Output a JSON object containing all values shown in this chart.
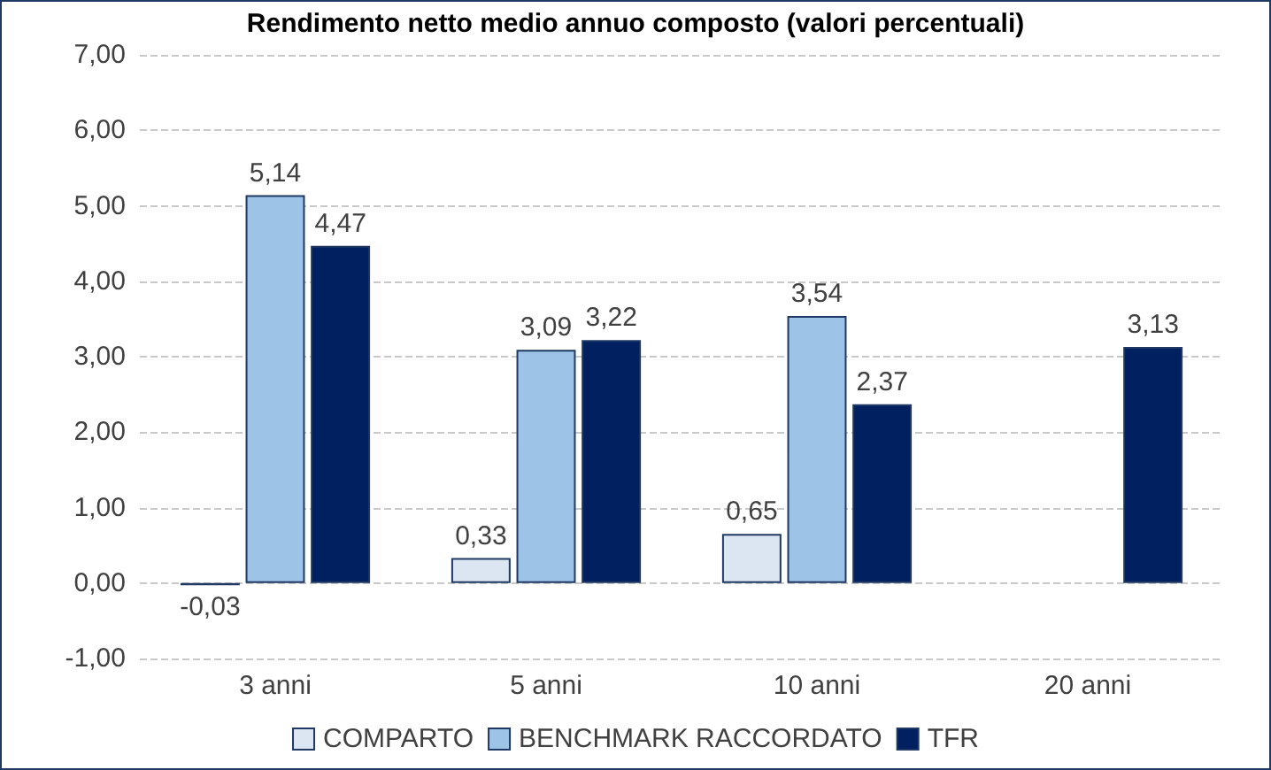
{
  "chart_data": {
    "type": "bar",
    "title": "Rendimento netto medio annuo composto (valori percentuali)",
    "categories": [
      "3 anni",
      "5 anni",
      "10 anni",
      "20 anni"
    ],
    "series": [
      {
        "name": "COMPARTO",
        "color": "#dce6f2",
        "values": [
          -0.03,
          0.33,
          0.65,
          null
        ],
        "value_labels": [
          "-0,03",
          "0,33",
          "0,65",
          null
        ]
      },
      {
        "name": "BENCHMARK RACCORDATO",
        "color": "#9dc3e6",
        "values": [
          5.14,
          3.09,
          3.54,
          null
        ],
        "value_labels": [
          "5,14",
          "3,09",
          "3,54",
          null
        ]
      },
      {
        "name": "TFR",
        "color": "#002060",
        "values": [
          4.47,
          3.22,
          2.37,
          3.13
        ],
        "value_labels": [
          "4,47",
          "3,22",
          "2,37",
          "3,13"
        ]
      }
    ],
    "ylim": [
      -1,
      7
    ],
    "yticks": [
      {
        "value": -1,
        "label": "-1,00"
      },
      {
        "value": 0,
        "label": "0,00"
      },
      {
        "value": 1,
        "label": "1,00"
      },
      {
        "value": 2,
        "label": "2,00"
      },
      {
        "value": 3,
        "label": "3,00"
      },
      {
        "value": 4,
        "label": "4,00"
      },
      {
        "value": 5,
        "label": "5,00"
      },
      {
        "value": 6,
        "label": "6,00"
      },
      {
        "value": 7,
        "label": "7,00"
      }
    ],
    "grid": "y",
    "legend": "bottom"
  }
}
